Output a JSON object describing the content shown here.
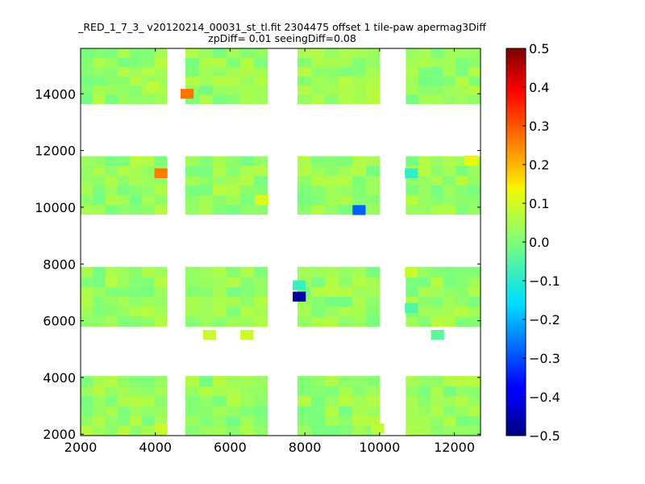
{
  "chart_data": {
    "type": "heatmap",
    "title_line1": "_RED_1_7_3_ v20120214_00031_st_tl.fit 2304475 offset 1 tile-paw apermag3Diff",
    "title_line2": "zpDiff= 0.01 seeingDiff=0.08",
    "xlabel": "",
    "ylabel": "",
    "xlim": [
      2000,
      12700
    ],
    "ylim": [
      1950,
      15600
    ],
    "x_ticks": [
      "2000",
      "4000",
      "6000",
      "8000",
      "10000",
      "12000"
    ],
    "y_ticks": [
      "2000",
      "4000",
      "6000",
      "8000",
      "10000",
      "12000",
      "14000"
    ],
    "colorbar": {
      "colormap": "jet",
      "range": [
        -0.5,
        0.5
      ],
      "tick_values": [
        0.5,
        0.4,
        0.3,
        0.2,
        0.1,
        0.0,
        -0.1,
        -0.2,
        -0.3,
        -0.4,
        -0.5
      ],
      "tick_labels": [
        "0.5",
        "0.4",
        "0.3",
        "0.2",
        "0.1",
        "0.0",
        "−0.1",
        "−0.2",
        "−0.3",
        "−0.4",
        "−0.5"
      ]
    },
    "grid": false,
    "cell_size": [
      350,
      350
    ],
    "base_value": 0.03,
    "detectors": [
      {
        "x": [
          2000,
          4300
        ],
        "y": [
          13650,
          15600
        ]
      },
      {
        "x": [
          4800,
          7000
        ],
        "y": [
          13650,
          15600
        ]
      },
      {
        "x": [
          7800,
          10000
        ],
        "y": [
          13650,
          15600
        ]
      },
      {
        "x": [
          10700,
          12700
        ],
        "y": [
          13650,
          15600
        ]
      },
      {
        "x": [
          2000,
          4300
        ],
        "y": [
          9750,
          11800
        ]
      },
      {
        "x": [
          4800,
          7000
        ],
        "y": [
          9750,
          11800
        ]
      },
      {
        "x": [
          7800,
          10000
        ],
        "y": [
          9750,
          11800
        ]
      },
      {
        "x": [
          10700,
          12700
        ],
        "y": [
          9750,
          11800
        ]
      },
      {
        "x": [
          2000,
          4300
        ],
        "y": [
          5800,
          7900
        ]
      },
      {
        "x": [
          4800,
          7000
        ],
        "y": [
          5800,
          7900
        ]
      },
      {
        "x": [
          7800,
          10000
        ],
        "y": [
          5800,
          7900
        ]
      },
      {
        "x": [
          10700,
          12700
        ],
        "y": [
          5800,
          7900
        ]
      },
      {
        "x": [
          2000,
          4300
        ],
        "y": [
          1950,
          4050
        ]
      },
      {
        "x": [
          4800,
          7000
        ],
        "y": [
          1950,
          4050
        ]
      },
      {
        "x": [
          7800,
          10000
        ],
        "y": [
          1950,
          4050
        ]
      },
      {
        "x": [
          10700,
          12700
        ],
        "y": [
          1950,
          4050
        ]
      }
    ],
    "highlights": [
      {
        "x": 4850,
        "y": 14000,
        "value": 0.27
      },
      {
        "x": 4150,
        "y": 11200,
        "value": 0.26
      },
      {
        "x": 9450,
        "y": 9900,
        "value": -0.28
      },
      {
        "x": 7850,
        "y": 6850,
        "value": -0.47
      },
      {
        "x": 7850,
        "y": 7250,
        "value": -0.08
      },
      {
        "x": 10850,
        "y": 11200,
        "value": -0.09
      },
      {
        "x": 10850,
        "y": 6450,
        "value": -0.05
      },
      {
        "x": 11550,
        "y": 5500,
        "value": -0.04
      },
      {
        "x": 12450,
        "y": 11650,
        "value": 0.13
      },
      {
        "x": 6850,
        "y": 10250,
        "value": 0.11
      },
      {
        "x": 5450,
        "y": 5500,
        "value": 0.09
      },
      {
        "x": 6450,
        "y": 5500,
        "value": 0.09
      },
      {
        "x": 10850,
        "y": 7700,
        "value": 0.09
      },
      {
        "x": 4150,
        "y": 2200,
        "value": 0.09
      },
      {
        "x": 3950,
        "y": 14250,
        "value": 0.08
      },
      {
        "x": 9950,
        "y": 2200,
        "value": 0.08
      }
    ]
  }
}
